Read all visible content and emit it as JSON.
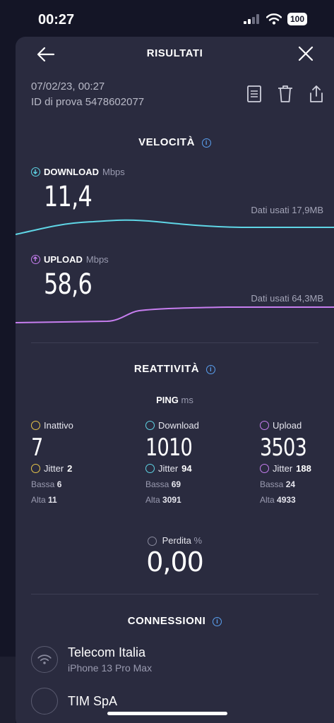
{
  "status_bar": {
    "time": "00:27",
    "battery": "100"
  },
  "header": {
    "title": "RISULTATI"
  },
  "meta": {
    "date": "07/02/23, 00:27",
    "test_id": "ID di prova 5478602077"
  },
  "speed": {
    "title": "VELOCITÀ",
    "download": {
      "label": "DOWNLOAD",
      "unit": "Mbps",
      "value": "11,4",
      "data_used": "Dati usati 17,9MB",
      "color": "#5fd6e6"
    },
    "upload": {
      "label": "UPLOAD",
      "unit": "Mbps",
      "value": "58,6",
      "data_used": "Dati usati 64,3MB",
      "color": "#c77ef0"
    }
  },
  "responsiveness": {
    "title": "REATTIVITÀ",
    "ping_label": "PING",
    "ping_unit": "ms",
    "idle": {
      "label": "Inattivo",
      "value": "7",
      "jitter_label": "Jitter",
      "jitter": "2",
      "low_label": "Bassa",
      "low": "6",
      "high_label": "Alta",
      "high": "11",
      "color": "#e8c64a"
    },
    "download": {
      "label": "Download",
      "value": "1010",
      "jitter_label": "Jitter",
      "jitter": "94",
      "low_label": "Bassa",
      "low": "69",
      "high_label": "Alta",
      "high": "3091",
      "color": "#5fd6e6"
    },
    "upload": {
      "label": "Upload",
      "value": "3503",
      "jitter_label": "Jitter",
      "jitter": "188",
      "low_label": "Bassa",
      "low": "24",
      "high_label": "Alta",
      "high": "4933",
      "color": "#c77ef0"
    },
    "loss_label": "Perdita",
    "loss_unit": "%",
    "loss_value": "0,00"
  },
  "connections": {
    "title": "CONNESSIONI",
    "items": [
      {
        "name": "Telecom Italia",
        "sub": "iPhone 13 Pro Max"
      },
      {
        "name": "TIM SpA",
        "sub": ""
      }
    ]
  }
}
